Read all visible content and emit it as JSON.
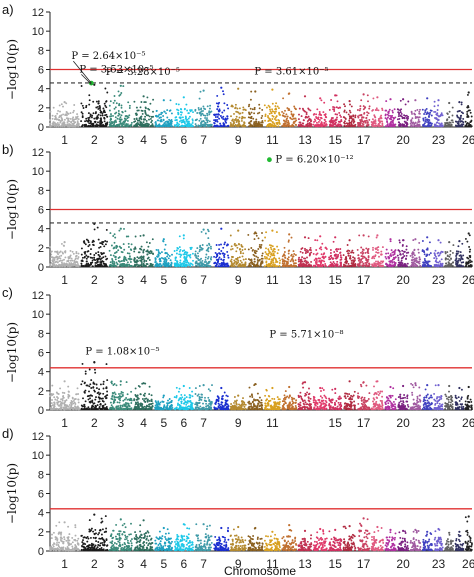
{
  "figure": {
    "xlabel": "Chromosome",
    "ylabel": "−log10(p)"
  },
  "colors": {
    "threshold_solid": "#e03030",
    "threshold_dashed": "#333333",
    "highlight_point": "#22bb33",
    "chromosome_palette": [
      "#b0b0b0",
      "#1a1a1a",
      "#3a8a7a",
      "#2e6e5e",
      "#1fa0c0",
      "#1ec8e8",
      "#3f9aa8",
      "#1a2ed0",
      "#b48a30",
      "#8a6020",
      "#d8a020",
      "#c07030",
      "#c03050",
      "#e03a6a",
      "#d03060",
      "#b02a40",
      "#c84060",
      "#e05a80",
      "#b030a0",
      "#7a2080",
      "#a05aa0",
      "#4040c0",
      "#7060d0",
      "#606060",
      "#303060",
      "#202020"
    ]
  },
  "chart_data": [
    {
      "panel_label": "a)",
      "type": "scatter",
      "ylim": [
        0,
        12
      ],
      "yticks": [
        0,
        2,
        4,
        6,
        8,
        10,
        12
      ],
      "thresholds": {
        "solid": 6.0,
        "dashed": 4.6
      },
      "chromosome_labels": [
        "1",
        "2",
        "3",
        "4",
        "5",
        "6",
        "7",
        "9",
        "11",
        "13",
        "15",
        "17",
        "20",
        "23",
        "26"
      ],
      "chromosome_peaks": [
        2.6,
        4.4,
        4.3,
        3.2,
        2.8,
        3.1,
        3.8,
        4.1,
        4.0,
        3.7,
        3.9,
        3.5,
        3.2,
        3.0,
        3.3,
        2.7,
        3.4,
        3.1,
        2.9,
        2.9,
        2.8,
        3.0,
        2.8,
        2.5,
        2.6,
        3.6
      ],
      "annotations": [
        {
          "text": "P = 2.64×10⁻⁵",
          "chr": 2,
          "y": 4.58
        },
        {
          "text": "P = 3.53×10⁻⁵",
          "chr": 2,
          "y": 4.45
        },
        {
          "text": "P = 3.28×10⁻⁵",
          "chr": 3,
          "y": 4.48
        },
        {
          "text": "P = 3.61×10⁻⁵",
          "chr": 11,
          "y": 4.44
        }
      ],
      "highlight": {
        "chr": 2,
        "y": 4.58
      }
    },
    {
      "panel_label": "b)",
      "type": "scatter",
      "ylim": [
        0,
        12
      ],
      "yticks": [
        0,
        2,
        4,
        6,
        8,
        10,
        12
      ],
      "thresholds": {
        "solid": 6.0,
        "dashed": 4.6
      },
      "chromosome_labels": [
        "1",
        "2",
        "3",
        "4",
        "5",
        "6",
        "7",
        "9",
        "11",
        "13",
        "15",
        "17",
        "20",
        "23",
        "26"
      ],
      "chromosome_peaks": [
        2.6,
        4.5,
        4.0,
        3.3,
        2.9,
        3.3,
        3.9,
        4.0,
        3.8,
        3.6,
        3.8,
        3.4,
        3.1,
        3.2,
        3.1,
        2.8,
        3.3,
        3.3,
        2.9,
        2.8,
        2.9,
        3.1,
        2.8,
        2.6,
        2.7,
        3.5
      ],
      "annotations": [
        {
          "text": "P = 6.20×10⁻¹²",
          "chr": 11,
          "y": 11.2
        }
      ],
      "highlight": {
        "chr": 11,
        "y": 11.2
      }
    },
    {
      "panel_label": "c)",
      "type": "scatter",
      "ylim": [
        0,
        12
      ],
      "yticks": [
        0,
        2,
        4,
        6,
        8,
        10,
        12
      ],
      "thresholds": {
        "solid": 4.4
      },
      "chromosome_labels": [
        "1",
        "2",
        "3",
        "4",
        "5",
        "6",
        "7",
        "9",
        "11",
        "15",
        "17",
        "20",
        "23",
        "26"
      ],
      "chromosome_peaks": [
        3.0,
        5.0,
        3.0,
        2.8,
        1.5,
        2.5,
        2.6,
        2.3,
        1.5,
        2.7,
        2.3,
        2.4,
        2.9,
        2.3,
        2.2,
        3.0,
        2.9,
        3.0,
        2.4,
        2.5,
        2.8,
        2.6,
        2.6,
        2.5,
        2.3,
        2.4
      ],
      "annotations": [
        {
          "text": "P = 1.08×10⁻⁵",
          "chr": 2,
          "y": 4.97
        },
        {
          "text": "P = 5.71×10⁻⁸",
          "chr": 11,
          "y": 7.24
        }
      ],
      "highlight": null
    },
    {
      "panel_label": "d)",
      "type": "scatter",
      "ylim": [
        0,
        12
      ],
      "yticks": [
        0,
        2,
        4,
        6,
        8,
        10,
        12
      ],
      "thresholds": {
        "solid": 4.4
      },
      "chromosome_labels": [
        "1",
        "2",
        "3",
        "4",
        "5",
        "6",
        "7",
        "9",
        "11",
        "13",
        "15",
        "17",
        "20",
        "23",
        "26"
      ],
      "chromosome_peaks": [
        3.0,
        3.8,
        3.3,
        3.2,
        2.4,
        2.8,
        2.8,
        2.4,
        2.5,
        2.4,
        2.0,
        2.7,
        2.1,
        2.3,
        2.2,
        2.6,
        3.4,
        2.5,
        2.2,
        2.1,
        2.2,
        2.0,
        2.3,
        1.9,
        2.0,
        3.6
      ],
      "annotations": [],
      "highlight": null
    }
  ]
}
